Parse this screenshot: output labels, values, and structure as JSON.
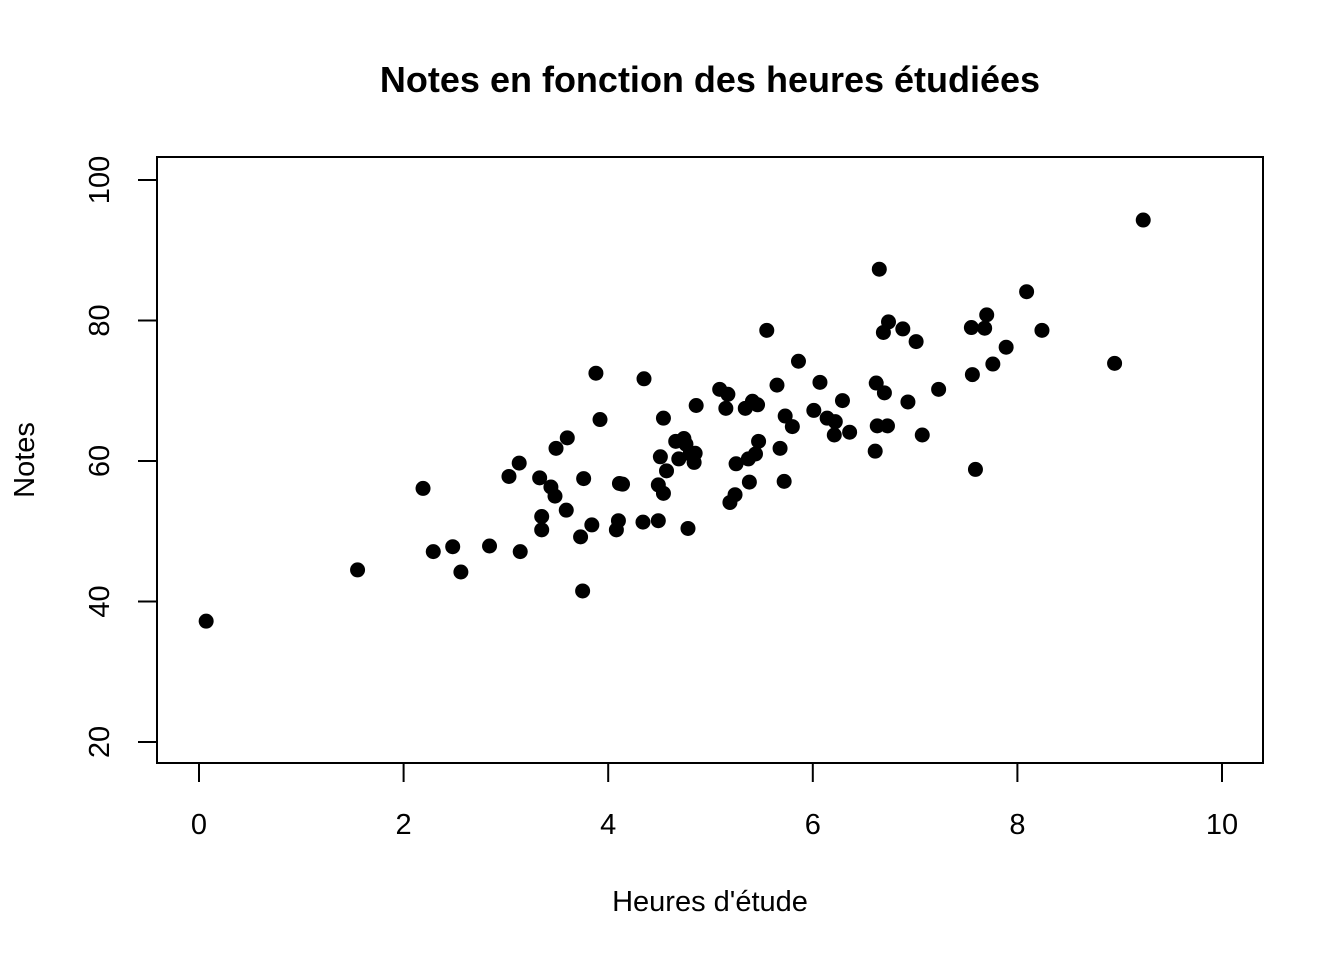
{
  "chart_data": {
    "type": "scatter",
    "title": "Notes en fonction des heures étudiées",
    "xlabel": "Heures d'étude",
    "ylabel": "Notes",
    "xlim": [
      0,
      10
    ],
    "ylim": [
      20,
      100
    ],
    "xticks": [
      "0",
      "2",
      "4",
      "6",
      "8",
      "10"
    ],
    "yticks": [
      "20",
      "40",
      "60",
      "80",
      "100"
    ],
    "grid": false,
    "legend": "none",
    "marker_color": "#000000",
    "marker": "filled-circle",
    "points": [
      [
        0.07,
        37.2
      ],
      [
        1.55,
        44.5
      ],
      [
        2.19,
        56.1
      ],
      [
        2.29,
        47.1
      ],
      [
        2.48,
        47.8
      ],
      [
        2.56,
        44.2
      ],
      [
        2.84,
        47.9
      ],
      [
        3.03,
        57.8
      ],
      [
        3.13,
        59.7
      ],
      [
        3.14,
        47.1
      ],
      [
        3.33,
        57.6
      ],
      [
        3.35,
        52.1
      ],
      [
        3.35,
        50.2
      ],
      [
        3.44,
        56.3
      ],
      [
        3.48,
        55.0
      ],
      [
        3.49,
        61.8
      ],
      [
        3.59,
        53.0
      ],
      [
        3.6,
        63.3
      ],
      [
        3.73,
        49.2
      ],
      [
        3.75,
        41.5
      ],
      [
        3.76,
        57.5
      ],
      [
        3.84,
        50.9
      ],
      [
        3.88,
        72.5
      ],
      [
        3.92,
        65.9
      ],
      [
        4.08,
        50.2
      ],
      [
        4.1,
        51.5
      ],
      [
        4.11,
        56.8
      ],
      [
        4.14,
        56.7
      ],
      [
        4.34,
        51.3
      ],
      [
        4.35,
        71.7
      ],
      [
        4.49,
        56.6
      ],
      [
        4.49,
        51.5
      ],
      [
        4.51,
        60.6
      ],
      [
        4.54,
        55.4
      ],
      [
        4.54,
        66.1
      ],
      [
        4.57,
        58.6
      ],
      [
        4.66,
        62.8
      ],
      [
        4.69,
        60.3
      ],
      [
        4.74,
        63.2
      ],
      [
        4.76,
        62.4
      ],
      [
        4.78,
        50.4
      ],
      [
        4.8,
        61.0
      ],
      [
        4.84,
        59.8
      ],
      [
        4.85,
        61.1
      ],
      [
        4.86,
        67.9
      ],
      [
        5.09,
        70.2
      ],
      [
        5.15,
        67.5
      ],
      [
        5.17,
        69.5
      ],
      [
        5.19,
        54.1
      ],
      [
        5.24,
        55.2
      ],
      [
        5.25,
        59.6
      ],
      [
        5.34,
        67.5
      ],
      [
        5.37,
        60.3
      ],
      [
        5.38,
        57.0
      ],
      [
        5.41,
        68.5
      ],
      [
        5.44,
        61.0
      ],
      [
        5.46,
        68.0
      ],
      [
        5.47,
        62.8
      ],
      [
        5.55,
        78.6
      ],
      [
        5.65,
        70.8
      ],
      [
        5.68,
        61.8
      ],
      [
        5.72,
        57.1
      ],
      [
        5.73,
        66.4
      ],
      [
        5.8,
        64.9
      ],
      [
        5.86,
        74.2
      ],
      [
        6.01,
        67.2
      ],
      [
        6.07,
        71.2
      ],
      [
        6.14,
        66.1
      ],
      [
        6.21,
        63.7
      ],
      [
        6.22,
        65.6
      ],
      [
        6.29,
        68.6
      ],
      [
        6.36,
        64.1
      ],
      [
        6.61,
        61.4
      ],
      [
        6.62,
        71.1
      ],
      [
        6.63,
        65.0
      ],
      [
        6.65,
        87.3
      ],
      [
        6.69,
        78.3
      ],
      [
        6.7,
        69.7
      ],
      [
        6.73,
        65.0
      ],
      [
        6.74,
        79.8
      ],
      [
        6.88,
        78.8
      ],
      [
        6.93,
        68.4
      ],
      [
        7.01,
        77.0
      ],
      [
        7.07,
        63.7
      ],
      [
        7.23,
        70.2
      ],
      [
        7.55,
        79.0
      ],
      [
        7.56,
        72.3
      ],
      [
        7.59,
        58.8
      ],
      [
        7.68,
        78.9
      ],
      [
        7.7,
        80.8
      ],
      [
        7.76,
        73.8
      ],
      [
        7.89,
        76.2
      ],
      [
        8.09,
        84.1
      ],
      [
        8.24,
        78.6
      ],
      [
        8.95,
        73.9
      ],
      [
        9.23,
        94.3
      ]
    ]
  }
}
